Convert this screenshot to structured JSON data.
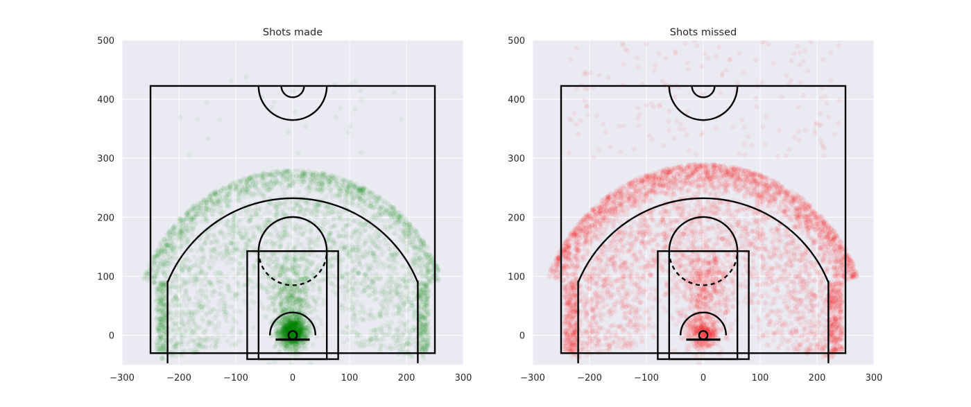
{
  "chart_data": [
    {
      "type": "scatter",
      "title": "Shots made",
      "xlabel": "",
      "ylabel": "",
      "xlim": [
        -300,
        300
      ],
      "ylim": [
        -50,
        500
      ],
      "xticks": [
        -300,
        -200,
        -100,
        0,
        100,
        200,
        300
      ],
      "yticks": [
        0,
        100,
        200,
        300,
        400,
        500
      ],
      "grid": true,
      "point_color": "#008000",
      "point_alpha": 0.06,
      "series": [
        {
          "distribution": "rim",
          "count": 1100,
          "center_x": 0,
          "center_y": 5,
          "spread_x": 12,
          "spread_y": 12
        },
        {
          "distribution": "paint",
          "count": 650,
          "center_x": 0,
          "center_y": 60,
          "spread_x": 22,
          "spread_y": 40
        },
        {
          "distribution": "midrange",
          "count": 1700,
          "min_radius": 80,
          "max_radius": 235,
          "min_angle_deg": -10,
          "max_angle_deg": 190
        },
        {
          "distribution": "three_point",
          "count": 1300,
          "min_radius": 238,
          "max_radius": 280,
          "min_angle_deg": 20,
          "max_angle_deg": 160
        },
        {
          "distribution": "corner_three",
          "count": 450,
          "x_abs_min": 220,
          "x_abs_max": 240,
          "y_min": -30,
          "y_max": 90
        },
        {
          "distribution": "long",
          "count": 30,
          "x_min": -200,
          "x_max": 200,
          "y_min": 290,
          "y_max": 440
        }
      ]
    },
    {
      "type": "scatter",
      "title": "Shots missed",
      "xlabel": "",
      "ylabel": "",
      "xlim": [
        -300,
        300
      ],
      "ylim": [
        -50,
        500
      ],
      "xticks": [
        -300,
        -200,
        -100,
        0,
        100,
        200,
        300
      ],
      "yticks": [
        0,
        100,
        200,
        300,
        400,
        500
      ],
      "grid": true,
      "point_color": "#ff0000",
      "point_alpha": 0.06,
      "series": [
        {
          "distribution": "rim",
          "count": 350,
          "center_x": 0,
          "center_y": 5,
          "spread_x": 14,
          "spread_y": 14
        },
        {
          "distribution": "paint",
          "count": 600,
          "center_x": 0,
          "center_y": 70,
          "spread_x": 25,
          "spread_y": 45
        },
        {
          "distribution": "midrange",
          "count": 2000,
          "min_radius": 80,
          "max_radius": 235,
          "min_angle_deg": -10,
          "max_angle_deg": 190
        },
        {
          "distribution": "three_point",
          "count": 2300,
          "min_radius": 238,
          "max_radius": 290,
          "min_angle_deg": 20,
          "max_angle_deg": 160
        },
        {
          "distribution": "corner_three",
          "count": 650,
          "x_abs_min": 220,
          "x_abs_max": 245,
          "y_min": -30,
          "y_max": 90
        },
        {
          "distribution": "long",
          "count": 180,
          "x_min": -240,
          "x_max": 240,
          "y_min": 300,
          "y_max": 500
        }
      ]
    }
  ],
  "court": {
    "line_color": "#000000"
  },
  "style": {
    "axes_background": "#eaeaf2",
    "grid_color": "#ffffff",
    "text_color": "#262626"
  }
}
